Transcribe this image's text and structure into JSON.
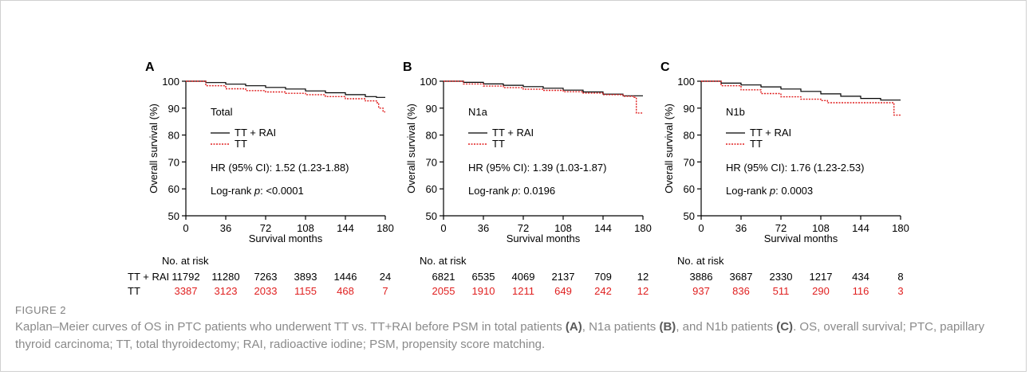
{
  "colors": {
    "tt_rai": "#000000",
    "tt": "#e02020"
  },
  "figure": {
    "label": "FIGURE 2",
    "caption_parts": [
      {
        "t": "Kaplan–Meier curves of OS in PTC patients who underwent TT vs. TT+RAI before PSM in total patients ",
        "b": false
      },
      {
        "t": "(A)",
        "b": true
      },
      {
        "t": ", N1a patients ",
        "b": false
      },
      {
        "t": "(B)",
        "b": true
      },
      {
        "t": ", and N1b patients ",
        "b": false
      },
      {
        "t": "(C)",
        "b": true
      },
      {
        "t": ". OS, overall survival; PTC, papillary thyroid carcinoma; TT, total thyroidectomy; RAI, radioactive iodine; PSM, propensity score matching.",
        "b": false
      }
    ]
  },
  "risk_table": {
    "title": "No. at risk",
    "row_labels": [
      "TT + RAI",
      "TT"
    ]
  },
  "chart_data": [
    {
      "type": "line",
      "panel": "A",
      "subgroup": "Total",
      "xlabel": "Survival months",
      "ylabel": "Overall survival (%)",
      "xticks": [
        0,
        36,
        72,
        108,
        144,
        180
      ],
      "yticks": [
        50,
        60,
        70,
        80,
        90,
        100
      ],
      "xlim": [
        0,
        180
      ],
      "ylim": [
        50,
        100
      ],
      "legend_position": "inside-left",
      "series": [
        {
          "name": "TT + RAI",
          "style": "solid",
          "x": [
            0,
            18,
            36,
            54,
            72,
            90,
            108,
            126,
            144,
            162,
            172,
            180
          ],
          "y": [
            100,
            99.5,
            98.9,
            98.3,
            97.7,
            97.1,
            96.4,
            95.7,
            95.0,
            94.3,
            94.0,
            94.0
          ]
        },
        {
          "name": "TT",
          "style": "dotted",
          "x": [
            0,
            18,
            36,
            54,
            72,
            90,
            108,
            126,
            144,
            162,
            172,
            174,
            176,
            178,
            180
          ],
          "y": [
            100,
            98.3,
            97.2,
            96.5,
            96.0,
            95.5,
            95.0,
            94.3,
            93.5,
            92.7,
            92.0,
            90.0,
            90.0,
            88.6,
            88.6
          ]
        }
      ],
      "hr_text": "HR (95% CI): 1.52 (1.23-1.88)",
      "logrank_prefix": "Log-rank ",
      "logrank_p": "p",
      "logrank_value": ": <0.0001",
      "at_risk": {
        "tt_rai": [
          "11792",
          "11280",
          "7263",
          "3893",
          "1446",
          "24"
        ],
        "tt": [
          "3387",
          "3123",
          "2033",
          "1155",
          "468",
          "7"
        ]
      }
    },
    {
      "type": "line",
      "panel": "B",
      "subgroup": "N1a",
      "xlabel": "Survival months",
      "ylabel": "Overall survival (%)",
      "xticks": [
        0,
        36,
        72,
        108,
        144,
        180
      ],
      "yticks": [
        50,
        60,
        70,
        80,
        90,
        100
      ],
      "xlim": [
        0,
        180
      ],
      "ylim": [
        50,
        100
      ],
      "legend_position": "inside-left",
      "series": [
        {
          "name": "TT + RAI",
          "style": "solid",
          "x": [
            0,
            18,
            36,
            54,
            72,
            90,
            108,
            126,
            144,
            162,
            180
          ],
          "y": [
            100,
            99.6,
            99.0,
            98.5,
            98.0,
            97.4,
            96.7,
            96.0,
            95.2,
            94.6,
            94.6
          ]
        },
        {
          "name": "TT",
          "style": "dotted",
          "x": [
            0,
            18,
            36,
            54,
            72,
            90,
            108,
            126,
            144,
            162,
            172,
            174,
            177,
            180
          ],
          "y": [
            100,
            99.0,
            98.2,
            97.6,
            97.0,
            96.6,
            96.1,
            95.6,
            95.0,
            94.4,
            94.0,
            88.2,
            88.2,
            88.2
          ]
        }
      ],
      "hr_text": "HR (95% CI): 1.39 (1.03-1.87)",
      "logrank_prefix": "Log-rank ",
      "logrank_p": "p",
      "logrank_value": ": 0.0196",
      "at_risk": {
        "tt_rai": [
          "6821",
          "6535",
          "4069",
          "2137",
          "709",
          "12"
        ],
        "tt": [
          "2055",
          "1910",
          "1211",
          "649",
          "242",
          "12"
        ]
      }
    },
    {
      "type": "line",
      "panel": "C",
      "subgroup": "N1b",
      "xlabel": "Survival months",
      "ylabel": "Overall survival (%)",
      "xticks": [
        0,
        36,
        72,
        108,
        144,
        180
      ],
      "yticks": [
        50,
        60,
        70,
        80,
        90,
        100
      ],
      "xlim": [
        0,
        180
      ],
      "ylim": [
        50,
        100
      ],
      "legend_position": "inside-left",
      "series": [
        {
          "name": "TT + RAI",
          "style": "solid",
          "x": [
            0,
            18,
            36,
            54,
            72,
            90,
            108,
            126,
            144,
            162,
            180
          ],
          "y": [
            100,
            99.3,
            98.6,
            97.9,
            97.1,
            96.2,
            95.3,
            94.4,
            93.6,
            93.0,
            93.0
          ]
        },
        {
          "name": "TT",
          "style": "dotted",
          "x": [
            0,
            18,
            36,
            54,
            72,
            90,
            108,
            114,
            126,
            144,
            162,
            172,
            174,
            180
          ],
          "y": [
            100,
            98.3,
            96.8,
            95.4,
            94.2,
            93.3,
            92.8,
            92.0,
            92.0,
            92.0,
            92.0,
            92.0,
            87.4,
            87.4
          ]
        }
      ],
      "hr_text": "HR (95% CI): 1.76 (1.23-2.53)",
      "logrank_prefix": "Log-rank ",
      "logrank_p": "p",
      "logrank_value": ": 0.0003",
      "at_risk": {
        "tt_rai": [
          "3886",
          "3687",
          "2330",
          "1217",
          "434",
          "8"
        ],
        "tt": [
          "937",
          "836",
          "511",
          "290",
          "116",
          "3"
        ]
      }
    }
  ]
}
